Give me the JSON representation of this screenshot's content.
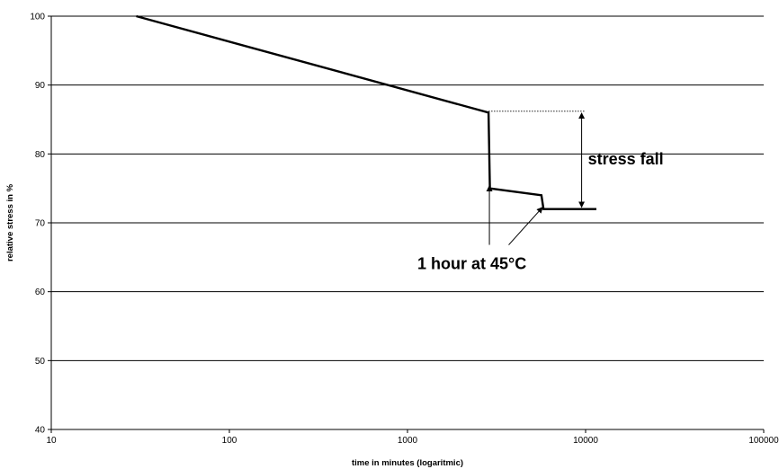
{
  "chart_data": {
    "type": "line",
    "title": "",
    "xlabel": "time in minutes (logaritmic)",
    "ylabel": "relative stress in %",
    "x_scale": "log",
    "xlim": [
      10,
      100000
    ],
    "ylim": [
      40,
      100
    ],
    "x_ticks": [
      "10",
      "100",
      "1000",
      "10000",
      "100000"
    ],
    "y_ticks": [
      "40",
      "50",
      "60",
      "70",
      "80",
      "90",
      "100"
    ],
    "grid": "horizontal",
    "legend": "none",
    "line_color": "#000000",
    "series": [
      {
        "values": [
          {
            "x": 30,
            "y": 100
          },
          {
            "x": 2850,
            "y": 86
          },
          {
            "x": 2900,
            "y": 75
          },
          {
            "x": 5650,
            "y": 74
          },
          {
            "x": 5800,
            "y": 72
          },
          {
            "x": 11500,
            "y": 72
          }
        ]
      }
    ],
    "annotations": [
      {
        "text": "stress fall",
        "x": 9500,
        "y_from": 86.2,
        "y_to": 72
      },
      {
        "text": "1 hour at 45°C",
        "points_to": [
          {
            "x": 2900,
            "y": 75
          },
          {
            "x": 5800,
            "y": 72
          }
        ]
      }
    ]
  }
}
